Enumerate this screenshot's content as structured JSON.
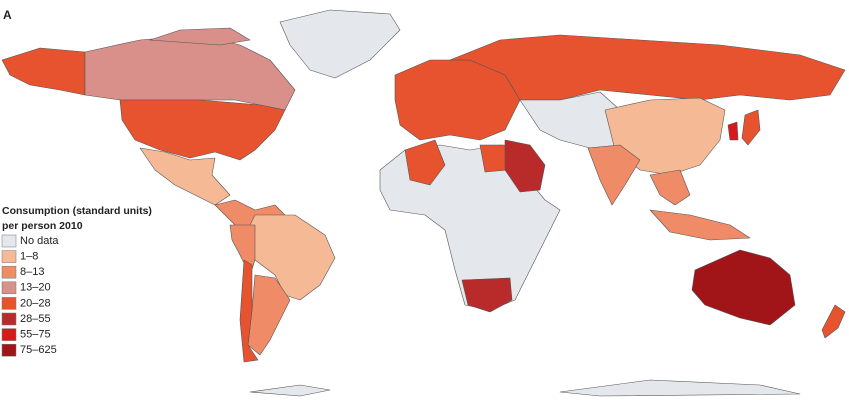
{
  "panel_label": "A",
  "legend": {
    "title_lines": [
      "Consumption (standard units)",
      "per person 2010"
    ],
    "items": [
      {
        "label": "No data",
        "color": "#e4e8ec"
      },
      {
        "label": "1–8",
        "color": "#f6b996"
      },
      {
        "label": "8–13",
        "color": "#ef8b66"
      },
      {
        "label": "13–20",
        "color": "#d98f8a"
      },
      {
        "label": "20–28",
        "color": "#e8532f"
      },
      {
        "label": "28–55",
        "color": "#b92b2a"
      },
      {
        "label": "55–75",
        "color": "#d7191c"
      },
      {
        "label": "75–625",
        "color": "#a11418"
      }
    ]
  }
}
